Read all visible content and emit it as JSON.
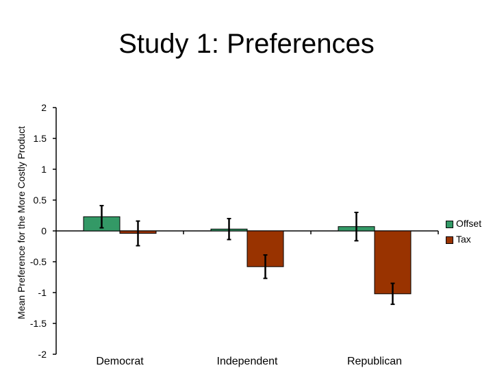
{
  "chart_data": {
    "type": "bar",
    "title": "Study 1: Preferences",
    "xlabel": "",
    "ylabel": "Mean Preference for the More Costly Product",
    "categories": [
      "Democrat",
      "Independent",
      "Republican"
    ],
    "series": [
      {
        "name": "Offset",
        "values": [
          0.23,
          0.03,
          0.07
        ],
        "errors": [
          0.18,
          0.17,
          0.23
        ],
        "color": "#339966"
      },
      {
        "name": "Tax",
        "values": [
          -0.04,
          -0.58,
          -1.02
        ],
        "errors": [
          0.2,
          0.19,
          0.17
        ],
        "color": "#993300"
      }
    ],
    "ylim": [
      -2,
      2
    ],
    "yticks": [
      "2",
      "1.5",
      "1",
      "0.5",
      "0",
      "-0.5",
      "-1",
      "-1.5",
      "-2"
    ],
    "ytick_values": [
      2,
      1.5,
      1,
      0.5,
      0,
      -0.5,
      -1,
      -1.5,
      -2
    ],
    "legend_position": "right",
    "grid": false
  }
}
